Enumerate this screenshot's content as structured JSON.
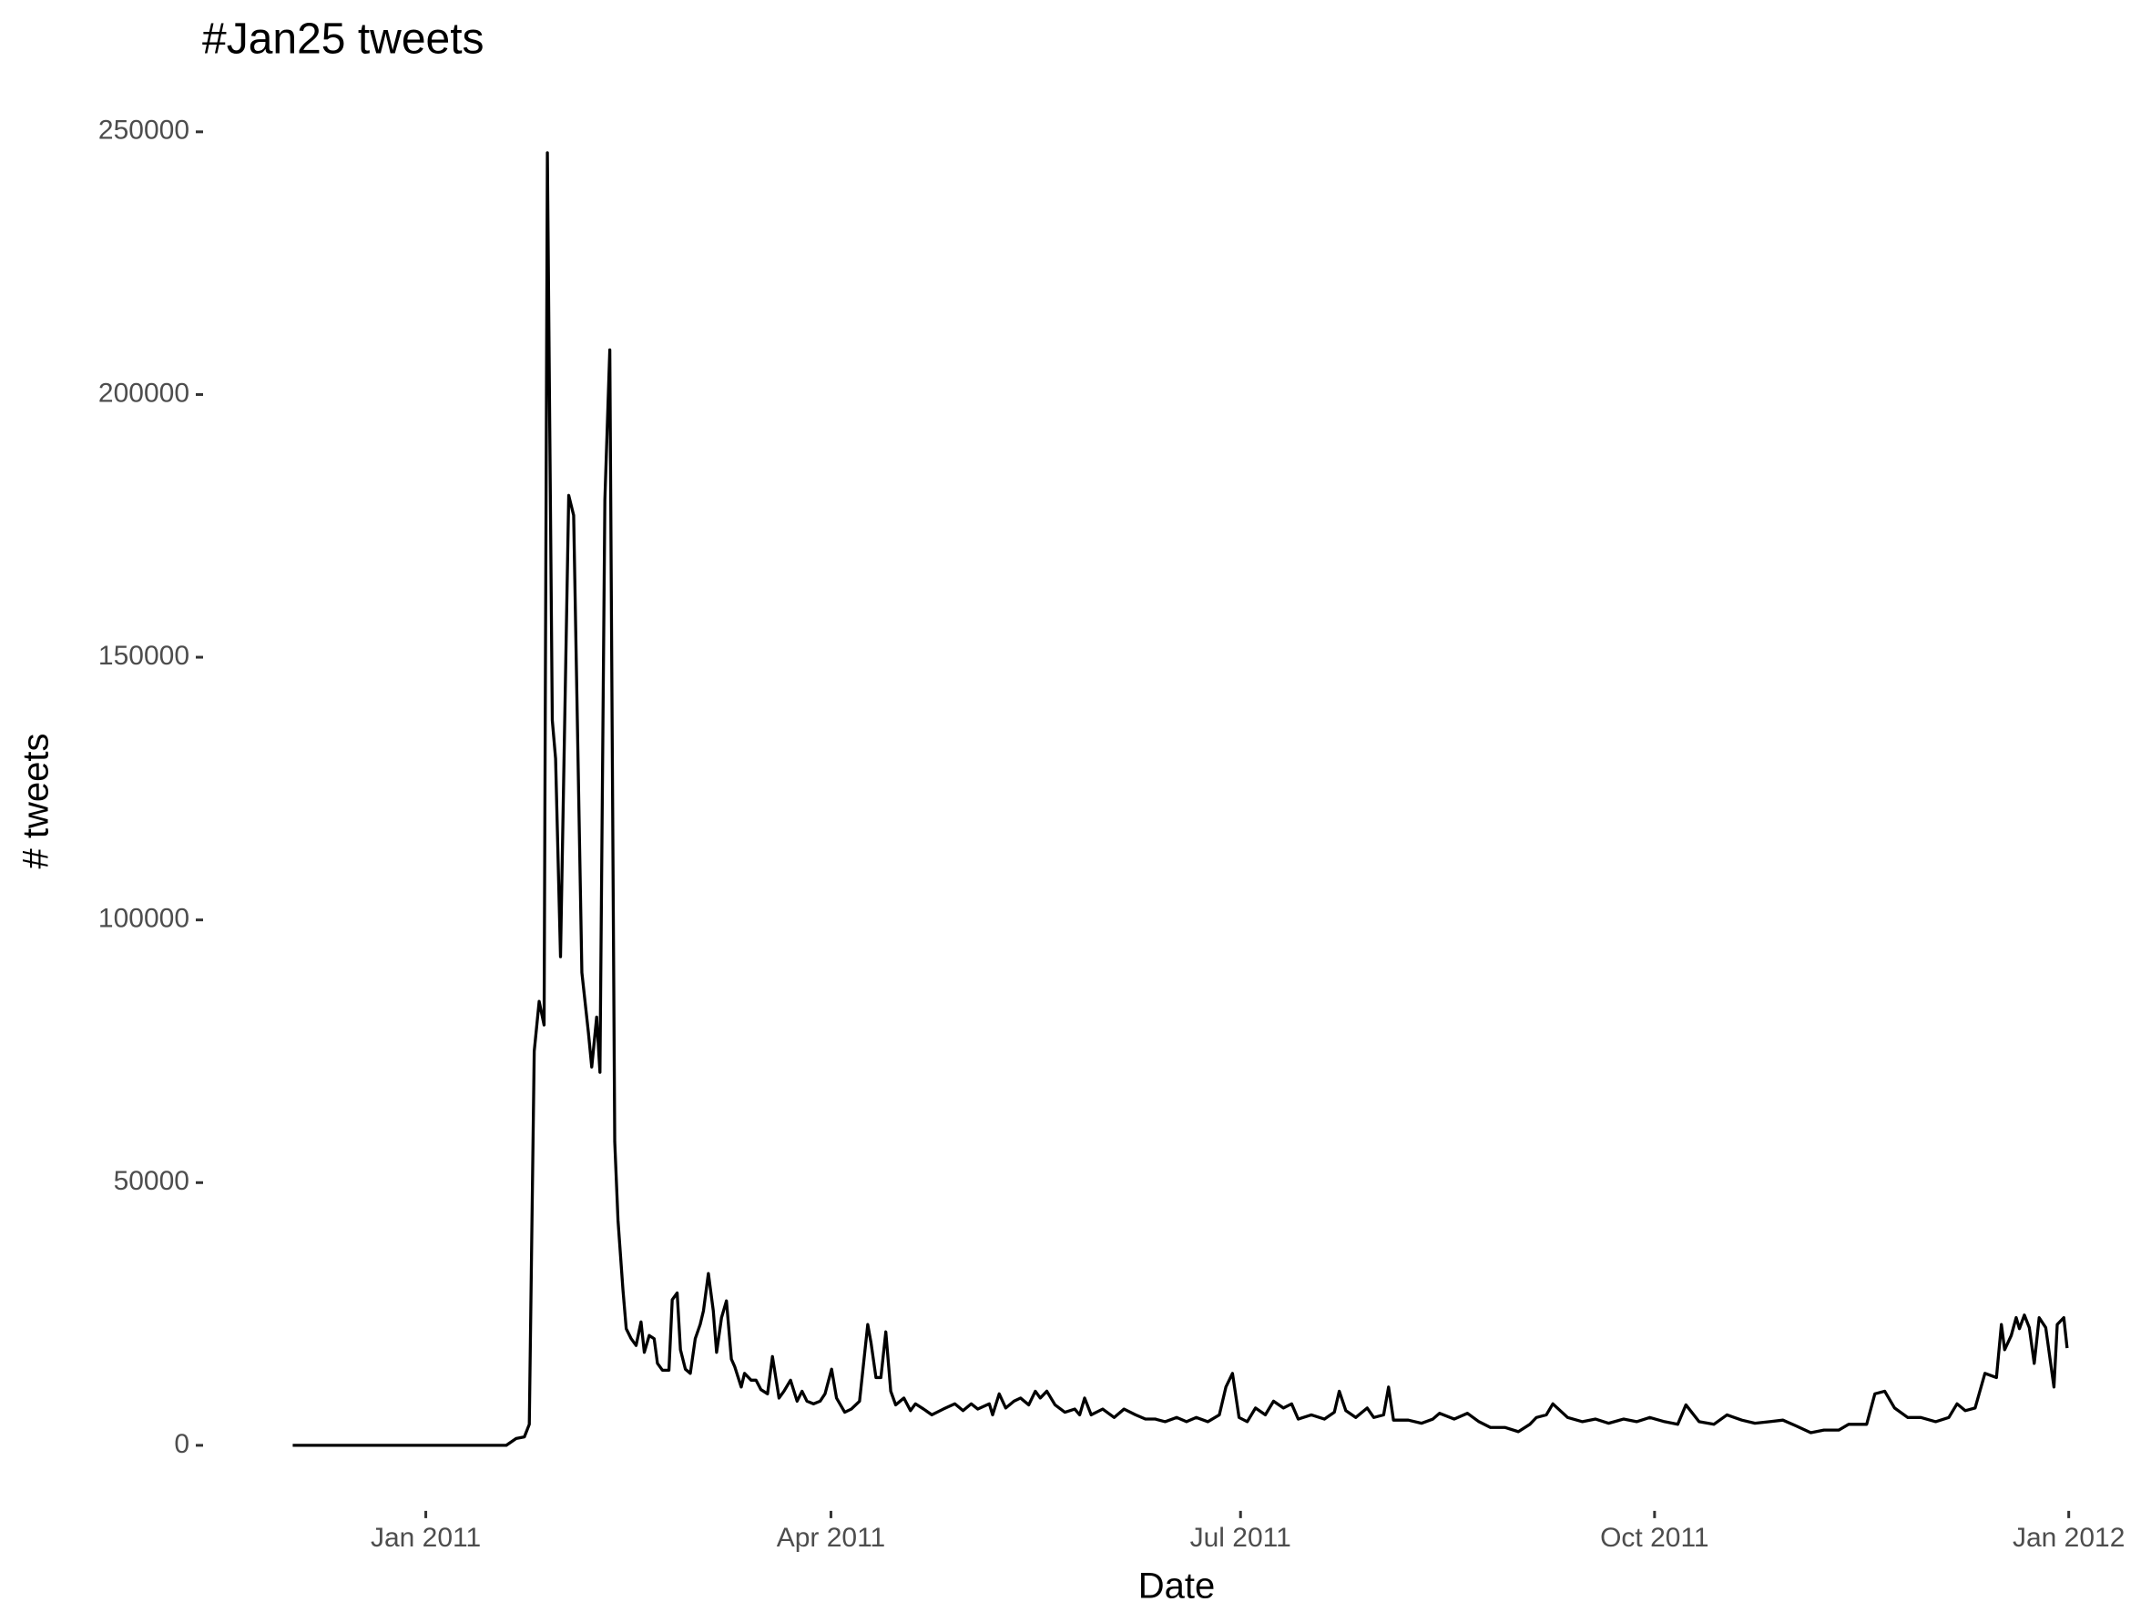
{
  "chart_data": {
    "type": "line",
    "title": "#Jan25 tweets",
    "x_label": "Date",
    "y_label": "# tweets",
    "grid": false,
    "xlim": [
      2010.865,
      2012.045
    ],
    "ylim": [
      -12300,
      258300
    ],
    "xticks": [
      {
        "value": 2011.0,
        "label": "Jan 2011"
      },
      {
        "value": 2011.2466,
        "label": "Apr 2011"
      },
      {
        "value": 2011.4959,
        "label": "Jul 2011"
      },
      {
        "value": 2011.7479,
        "label": "Oct 2011"
      },
      {
        "value": 2012.0,
        "label": "Jan 2012"
      }
    ],
    "yticks": [
      0,
      50000,
      100000,
      150000,
      200000,
      250000
    ],
    "series": [
      {
        "name": "tweets",
        "color": "#000000",
        "x": [
          2010.919,
          2011.049,
          2011.055,
          2011.06,
          2011.063,
          2011.066,
          2011.069,
          2011.072,
          2011.074,
          2011.077,
          2011.079,
          2011.082,
          2011.087,
          2011.09,
          2011.095,
          2011.099,
          2011.101,
          2011.104,
          2011.106,
          2011.109,
          2011.112,
          2011.115,
          2011.117,
          2011.12,
          2011.122,
          2011.125,
          2011.128,
          2011.131,
          2011.133,
          2011.136,
          2011.139,
          2011.141,
          2011.144,
          2011.148,
          2011.15,
          2011.153,
          2011.155,
          2011.158,
          2011.161,
          2011.164,
          2011.167,
          2011.169,
          2011.172,
          2011.175,
          2011.177,
          2011.18,
          2011.183,
          2011.186,
          2011.188,
          2011.192,
          2011.194,
          2011.198,
          2011.201,
          2011.204,
          2011.208,
          2011.211,
          2011.215,
          2011.218,
          2011.222,
          2011.226,
          2011.229,
          2011.232,
          2011.236,
          2011.24,
          2011.243,
          2011.247,
          2011.25,
          2011.255,
          2011.259,
          2011.264,
          2011.269,
          2011.271,
          2011.274,
          2011.277,
          2011.28,
          2011.283,
          2011.286,
          2011.291,
          2011.295,
          2011.298,
          2011.303,
          2011.308,
          2011.315,
          2011.322,
          2011.327,
          2011.332,
          2011.336,
          2011.343,
          2011.345,
          2011.349,
          2011.353,
          2011.358,
          2011.362,
          2011.367,
          2011.371,
          2011.374,
          2011.378,
          2011.383,
          2011.389,
          2011.395,
          2011.398,
          2011.401,
          2011.405,
          2011.412,
          2011.419,
          2011.425,
          2011.432,
          2011.438,
          2011.444,
          2011.45,
          2011.457,
          2011.463,
          2011.469,
          2011.476,
          2011.483,
          2011.487,
          2011.491,
          2011.495,
          2011.5,
          2011.505,
          2011.511,
          2011.516,
          2011.522,
          2011.527,
          2011.531,
          2011.539,
          2011.547,
          2011.553,
          2011.556,
          2011.56,
          2011.566,
          2011.573,
          2011.577,
          2011.583,
          2011.586,
          2011.589,
          2011.598,
          2011.606,
          2011.613,
          2011.617,
          2011.626,
          2011.634,
          2011.641,
          2011.648,
          2011.657,
          2011.665,
          2011.672,
          2011.676,
          2011.682,
          2011.686,
          2011.695,
          2011.704,
          2011.712,
          2011.72,
          2011.729,
          2011.737,
          2011.745,
          2011.754,
          2011.762,
          2011.767,
          2011.775,
          2011.784,
          2011.792,
          2011.801,
          2011.809,
          2011.818,
          2011.826,
          2011.834,
          2011.843,
          2011.851,
          2011.86,
          2011.866,
          2011.877,
          2011.882,
          2011.888,
          2011.894,
          2011.902,
          2011.91,
          2011.919,
          2011.927,
          2011.932,
          2011.937,
          2011.943,
          2011.949,
          2011.956,
          2011.959,
          2011.961,
          2011.965,
          2011.968,
          2011.97,
          2011.973,
          2011.976,
          2011.979,
          2011.982,
          2011.986,
          2011.991,
          2011.993,
          2011.997,
          2011.999
        ],
        "values": [
          0,
          0,
          1300,
          1600,
          4000,
          75000,
          84500,
          80000,
          246000,
          138000,
          130700,
          93000,
          180800,
          177000,
          90000,
          78500,
          72000,
          81500,
          71000,
          180000,
          208500,
          57800,
          42800,
          29600,
          22200,
          20300,
          19000,
          23500,
          17700,
          20900,
          20300,
          15600,
          14300,
          14300,
          27700,
          29000,
          18200,
          14500,
          13700,
          20300,
          23000,
          25600,
          32700,
          25600,
          17700,
          24300,
          27500,
          16400,
          15000,
          11100,
          13700,
          12400,
          12400,
          10600,
          9800,
          16900,
          9000,
          10300,
          12400,
          8400,
          10300,
          8400,
          7900,
          8400,
          9800,
          14500,
          9000,
          6300,
          6900,
          8400,
          23000,
          19500,
          12900,
          12900,
          21600,
          10300,
          7700,
          9000,
          6600,
          7900,
          6900,
          5800,
          6900,
          7900,
          6600,
          7900,
          6900,
          7900,
          5800,
          9800,
          7100,
          8400,
          9000,
          7700,
          10300,
          9000,
          10300,
          7700,
          6300,
          6900,
          5800,
          9000,
          5800,
          6900,
          5300,
          6900,
          5800,
          5000,
          5000,
          4500,
          5300,
          4500,
          5300,
          4500,
          5800,
          11100,
          13700,
          5300,
          4500,
          7100,
          5800,
          8400,
          7100,
          7900,
          5000,
          5800,
          5000,
          6300,
          10300,
          6600,
          5300,
          7100,
          5300,
          5800,
          11100,
          4800,
          4800,
          4200,
          5000,
          6100,
          5000,
          6100,
          4500,
          3400,
          3400,
          2600,
          4000,
          5300,
          5800,
          7900,
          5300,
          4500,
          5000,
          4200,
          5000,
          4500,
          5300,
          4500,
          4000,
          7700,
          4500,
          4000,
          5800,
          4800,
          4200,
          4500,
          4800,
          3700,
          2400,
          2900,
          2900,
          4000,
          4000,
          9800,
          10300,
          7100,
          5300,
          5300,
          4500,
          5300,
          7900,
          6600,
          7100,
          13700,
          12900,
          23000,
          18200,
          20900,
          24300,
          22200,
          24800,
          22400,
          15600,
          24300,
          22400,
          11100,
          23000,
          24300,
          18500
        ]
      }
    ]
  }
}
